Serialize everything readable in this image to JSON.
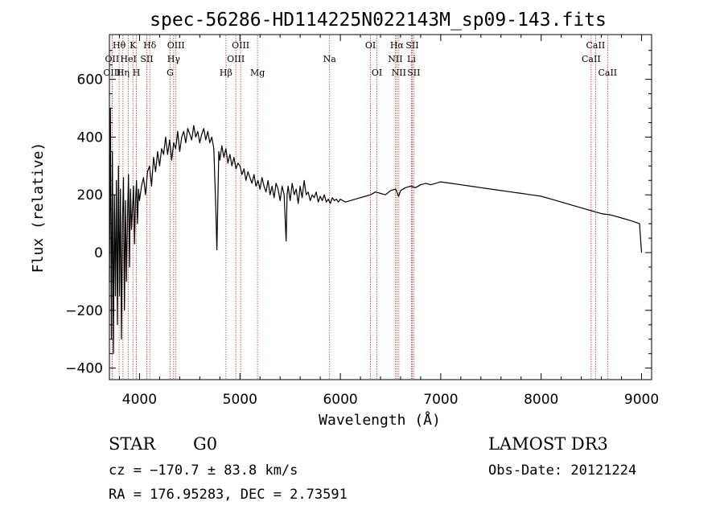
{
  "chart_data": {
    "type": "line",
    "title": "spec-56286-HD114225N022143M_sp09-143.fits",
    "xlabel": "Wavelength (Å)",
    "ylabel": "Flux (relative)",
    "xlim": [
      3700,
      9100
    ],
    "ylim": [
      -440,
      755
    ],
    "xticks": [
      4000,
      5000,
      6000,
      7000,
      8000,
      9000
    ],
    "yticks": [
      -400,
      -200,
      0,
      200,
      400,
      600
    ],
    "xtick_labels": [
      "4000",
      "5000",
      "6000",
      "7000",
      "8000",
      "9000"
    ],
    "ytick_labels": [
      "−400",
      "−200",
      "0",
      "200",
      "400",
      "600"
    ],
    "series": [
      {
        "name": "flux",
        "x": [
          3700,
          3710,
          3720,
          3730,
          3740,
          3750,
          3760,
          3770,
          3780,
          3790,
          3800,
          3810,
          3820,
          3830,
          3840,
          3850,
          3860,
          3870,
          3880,
          3890,
          3900,
          3910,
          3920,
          3930,
          3940,
          3950,
          3960,
          3970,
          3980,
          3990,
          4000,
          4020,
          4040,
          4060,
          4080,
          4100,
          4120,
          4140,
          4160,
          4180,
          4200,
          4220,
          4240,
          4260,
          4280,
          4300,
          4320,
          4340,
          4360,
          4380,
          4400,
          4420,
          4440,
          4460,
          4480,
          4500,
          4520,
          4540,
          4560,
          4580,
          4600,
          4620,
          4640,
          4660,
          4680,
          4700,
          4720,
          4740,
          4760,
          4770,
          4780,
          4790,
          4800,
          4820,
          4840,
          4860,
          4880,
          4900,
          4920,
          4940,
          4960,
          4980,
          5000,
          5020,
          5040,
          5060,
          5080,
          5100,
          5120,
          5140,
          5160,
          5180,
          5200,
          5220,
          5240,
          5260,
          5280,
          5300,
          5320,
          5340,
          5360,
          5380,
          5400,
          5420,
          5440,
          5460,
          5470,
          5480,
          5500,
          5520,
          5540,
          5560,
          5580,
          5600,
          5620,
          5640,
          5660,
          5680,
          5700,
          5720,
          5740,
          5760,
          5780,
          5800,
          5820,
          5840,
          5860,
          5880,
          5900,
          5920,
          5940,
          5960,
          5980,
          6000,
          6050,
          6100,
          6150,
          6200,
          6250,
          6300,
          6350,
          6400,
          6450,
          6500,
          6550,
          6563,
          6580,
          6600,
          6650,
          6700,
          6750,
          6800,
          6850,
          6900,
          6950,
          7000,
          7100,
          7200,
          7300,
          7400,
          7500,
          7600,
          7700,
          7800,
          7900,
          8000,
          8100,
          8200,
          8300,
          8400,
          8500,
          8600,
          8700,
          8800,
          8900,
          8980,
          9000
        ],
        "y": [
          -100,
          500,
          -300,
          350,
          -350,
          200,
          -150,
          250,
          -250,
          300,
          -150,
          220,
          -300,
          100,
          260,
          -200,
          180,
          -100,
          120,
          270,
          -50,
          220,
          80,
          150,
          230,
          30,
          180,
          250,
          100,
          220,
          180,
          230,
          260,
          200,
          280,
          300,
          230,
          330,
          280,
          350,
          300,
          360,
          340,
          400,
          340,
          390,
          320,
          380,
          360,
          420,
          350,
          400,
          420,
          380,
          430,
          410,
          390,
          440,
          400,
          420,
          380,
          410,
          430,
          390,
          420,
          380,
          400,
          360,
          150,
          10,
          180,
          350,
          320,
          370,
          330,
          360,
          310,
          340,
          300,
          330,
          290,
          310,
          300,
          270,
          290,
          250,
          280,
          260,
          240,
          270,
          230,
          250,
          220,
          260,
          230,
          210,
          250,
          200,
          230,
          190,
          240,
          220,
          180,
          230,
          200,
          40,
          200,
          230,
          180,
          240,
          200,
          220,
          170,
          230,
          190,
          250,
          200,
          210,
          180,
          200,
          190,
          210,
          175,
          195,
          180,
          200,
          175,
          185,
          170,
          190,
          180,
          185,
          175,
          185,
          175,
          180,
          185,
          190,
          195,
          200,
          210,
          205,
          200,
          215,
          220,
          210,
          195,
          215,
          225,
          230,
          225,
          235,
          240,
          235,
          240,
          245,
          240,
          235,
          230,
          225,
          220,
          215,
          210,
          205,
          200,
          195,
          185,
          175,
          165,
          155,
          145,
          135,
          130,
          120,
          110,
          100,
          0
        ]
      }
    ],
    "lines": [
      {
        "label": "Hθ",
        "x": 3797,
        "row": 0
      },
      {
        "label": "OII",
        "x": 3727,
        "row": 1
      },
      {
        "label": "OIII",
        "x": 3727,
        "row": 2
      },
      {
        "label": "K",
        "x": 3934,
        "row": 0
      },
      {
        "label": "HeI",
        "x": 3889,
        "row": 1
      },
      {
        "label": "Hη",
        "x": 3835,
        "row": 2
      },
      {
        "label": "Hδ",
        "x": 4102,
        "row": 0
      },
      {
        "label": "SII",
        "x": 4072,
        "row": 1
      },
      {
        "label": "H",
        "x": 3969,
        "row": 2
      },
      {
        "label": "OIII",
        "x": 4363,
        "row": 0
      },
      {
        "label": "Hγ",
        "x": 4340,
        "row": 1
      },
      {
        "label": "G",
        "x": 4305,
        "row": 2
      },
      {
        "label": "Hβ",
        "x": 4861,
        "row": 2
      },
      {
        "label": "OIII",
        "x": 5007,
        "row": 0
      },
      {
        "label": "OIII",
        "x": 4959,
        "row": 1
      },
      {
        "label": "Mg",
        "x": 5175,
        "row": 2
      },
      {
        "label": "Na",
        "x": 5893,
        "row": 1
      },
      {
        "label": "OI",
        "x": 6300,
        "row": 0
      },
      {
        "label": "OI",
        "x": 6364,
        "row": 2
      },
      {
        "label": "Hα",
        "x": 6563,
        "row": 0
      },
      {
        "label": "SII",
        "x": 6716,
        "row": 0
      },
      {
        "label": "NII",
        "x": 6548,
        "row": 1
      },
      {
        "label": "Li",
        "x": 6708,
        "row": 1
      },
      {
        "label": "NII",
        "x": 6583,
        "row": 2
      },
      {
        "label": "SII",
        "x": 6731,
        "row": 2
      },
      {
        "label": "CaII",
        "x": 8542,
        "row": 0
      },
      {
        "label": "CaII",
        "x": 8498,
        "row": 1
      },
      {
        "label": "CaII",
        "x": 8662,
        "row": 2
      }
    ]
  },
  "info": {
    "class_label": "STAR",
    "subclass_label": "G0",
    "survey_label": "LAMOST DR3",
    "cz_text": "cz = −170.7 ± 83.8 km/s",
    "obs_date_text": "Obs-Date: 20121224",
    "coords_text": "RA = 176.95283, DEC =   2.73591"
  }
}
